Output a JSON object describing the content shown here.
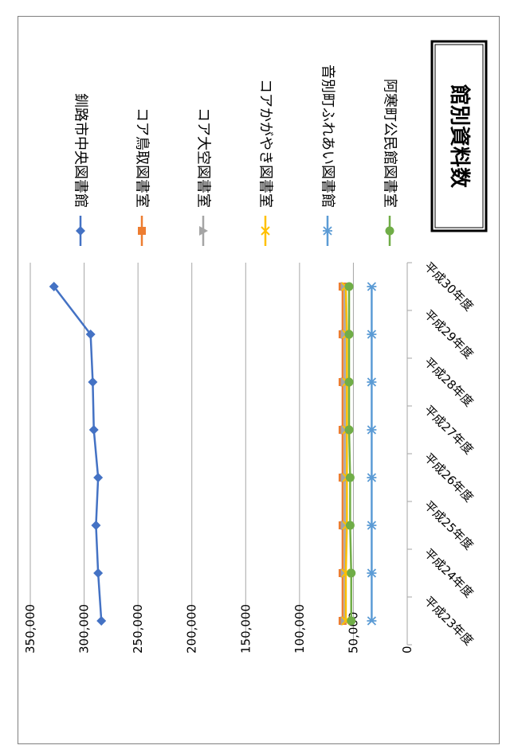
{
  "chart_data": {
    "type": "line",
    "title": "館別資料数",
    "xlabel": "",
    "ylabel": "",
    "categories": [
      "平成23年度",
      "平成24年度",
      "平成25年度",
      "平成26年度",
      "平成27年度",
      "平成28年度",
      "平成29年度",
      "平成30年度"
    ],
    "ylim": [
      0,
      350000
    ],
    "yticks": [
      0,
      50000,
      100000,
      150000,
      200000,
      250000,
      300000,
      350000
    ],
    "ytick_labels": [
      "0",
      "50,000",
      "100,000",
      "150,000",
      "200,000",
      "250,000",
      "300,000",
      "350,000"
    ],
    "grid": true,
    "orientation": "rotated-90-clockwise",
    "legend_position": "top",
    "series": [
      {
        "name": "釧路市中央図書館",
        "color": "#4472c4",
        "marker": "diamond",
        "values": [
          284000,
          287000,
          289000,
          287000,
          291000,
          292000,
          294000,
          328000
        ]
      },
      {
        "name": "コア鳥取図書室",
        "color": "#ed7d31",
        "marker": "square",
        "values": [
          60000,
          60000,
          60000,
          60000,
          60000,
          60000,
          60000,
          60000
        ]
      },
      {
        "name": "コア大空図書室",
        "color": "#a5a5a5",
        "marker": "triangle",
        "values": [
          58000,
          58000,
          58000,
          58000,
          58000,
          58000,
          58000,
          58000
        ]
      },
      {
        "name": "コアかがやき図書室",
        "color": "#ffc000",
        "marker": "x",
        "values": [
          57000,
          57000,
          56000,
          56000,
          56000,
          56000,
          56000,
          57000
        ]
      },
      {
        "name": "音別町ふれあい図書館",
        "color": "#5b9bd5",
        "marker": "star",
        "values": [
          33000,
          33000,
          33000,
          33000,
          33000,
          33000,
          33000,
          33000
        ]
      },
      {
        "name": "阿寒町公民館図書室",
        "color": "#70ad47",
        "marker": "circle",
        "values": [
          52000,
          52000,
          53000,
          53000,
          54000,
          54000,
          54000,
          54000
        ]
      }
    ]
  }
}
